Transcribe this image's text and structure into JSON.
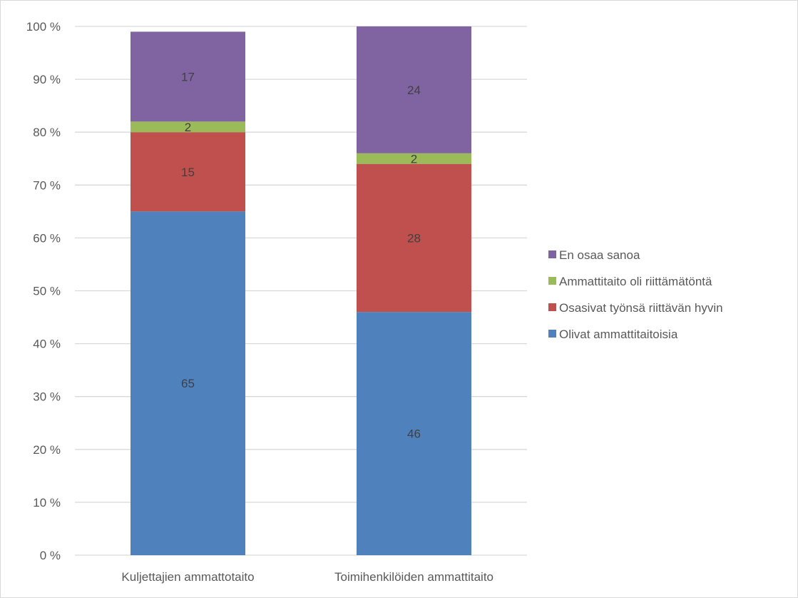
{
  "chart_data": {
    "type": "bar",
    "stacked": true,
    "categories": [
      "Kuljettajien ammattotaito",
      "Toimihenkilöiden ammattitaito"
    ],
    "series": [
      {
        "name": "Olivat ammattitaitoisia",
        "values": [
          65,
          46
        ],
        "color": "#4f81bd"
      },
      {
        "name": "Osasivat työnsä riittävän hyvin",
        "values": [
          15,
          28
        ],
        "color": "#c0504d"
      },
      {
        "name": "Ammattitaito oli riittämätöntä",
        "values": [
          2,
          2
        ],
        "color": "#9bbb59"
      },
      {
        "name": "En osaa sanoa",
        "values": [
          17,
          24
        ],
        "color": "#8064a2"
      }
    ],
    "ylim": [
      0,
      100
    ],
    "yticks": [
      "0 %",
      "10 %",
      "20 %",
      "30 %",
      "40 %",
      "50 %",
      "60 %",
      "70 %",
      "80 %",
      "90 %",
      "100 %"
    ],
    "grid": true,
    "legend": "right"
  }
}
